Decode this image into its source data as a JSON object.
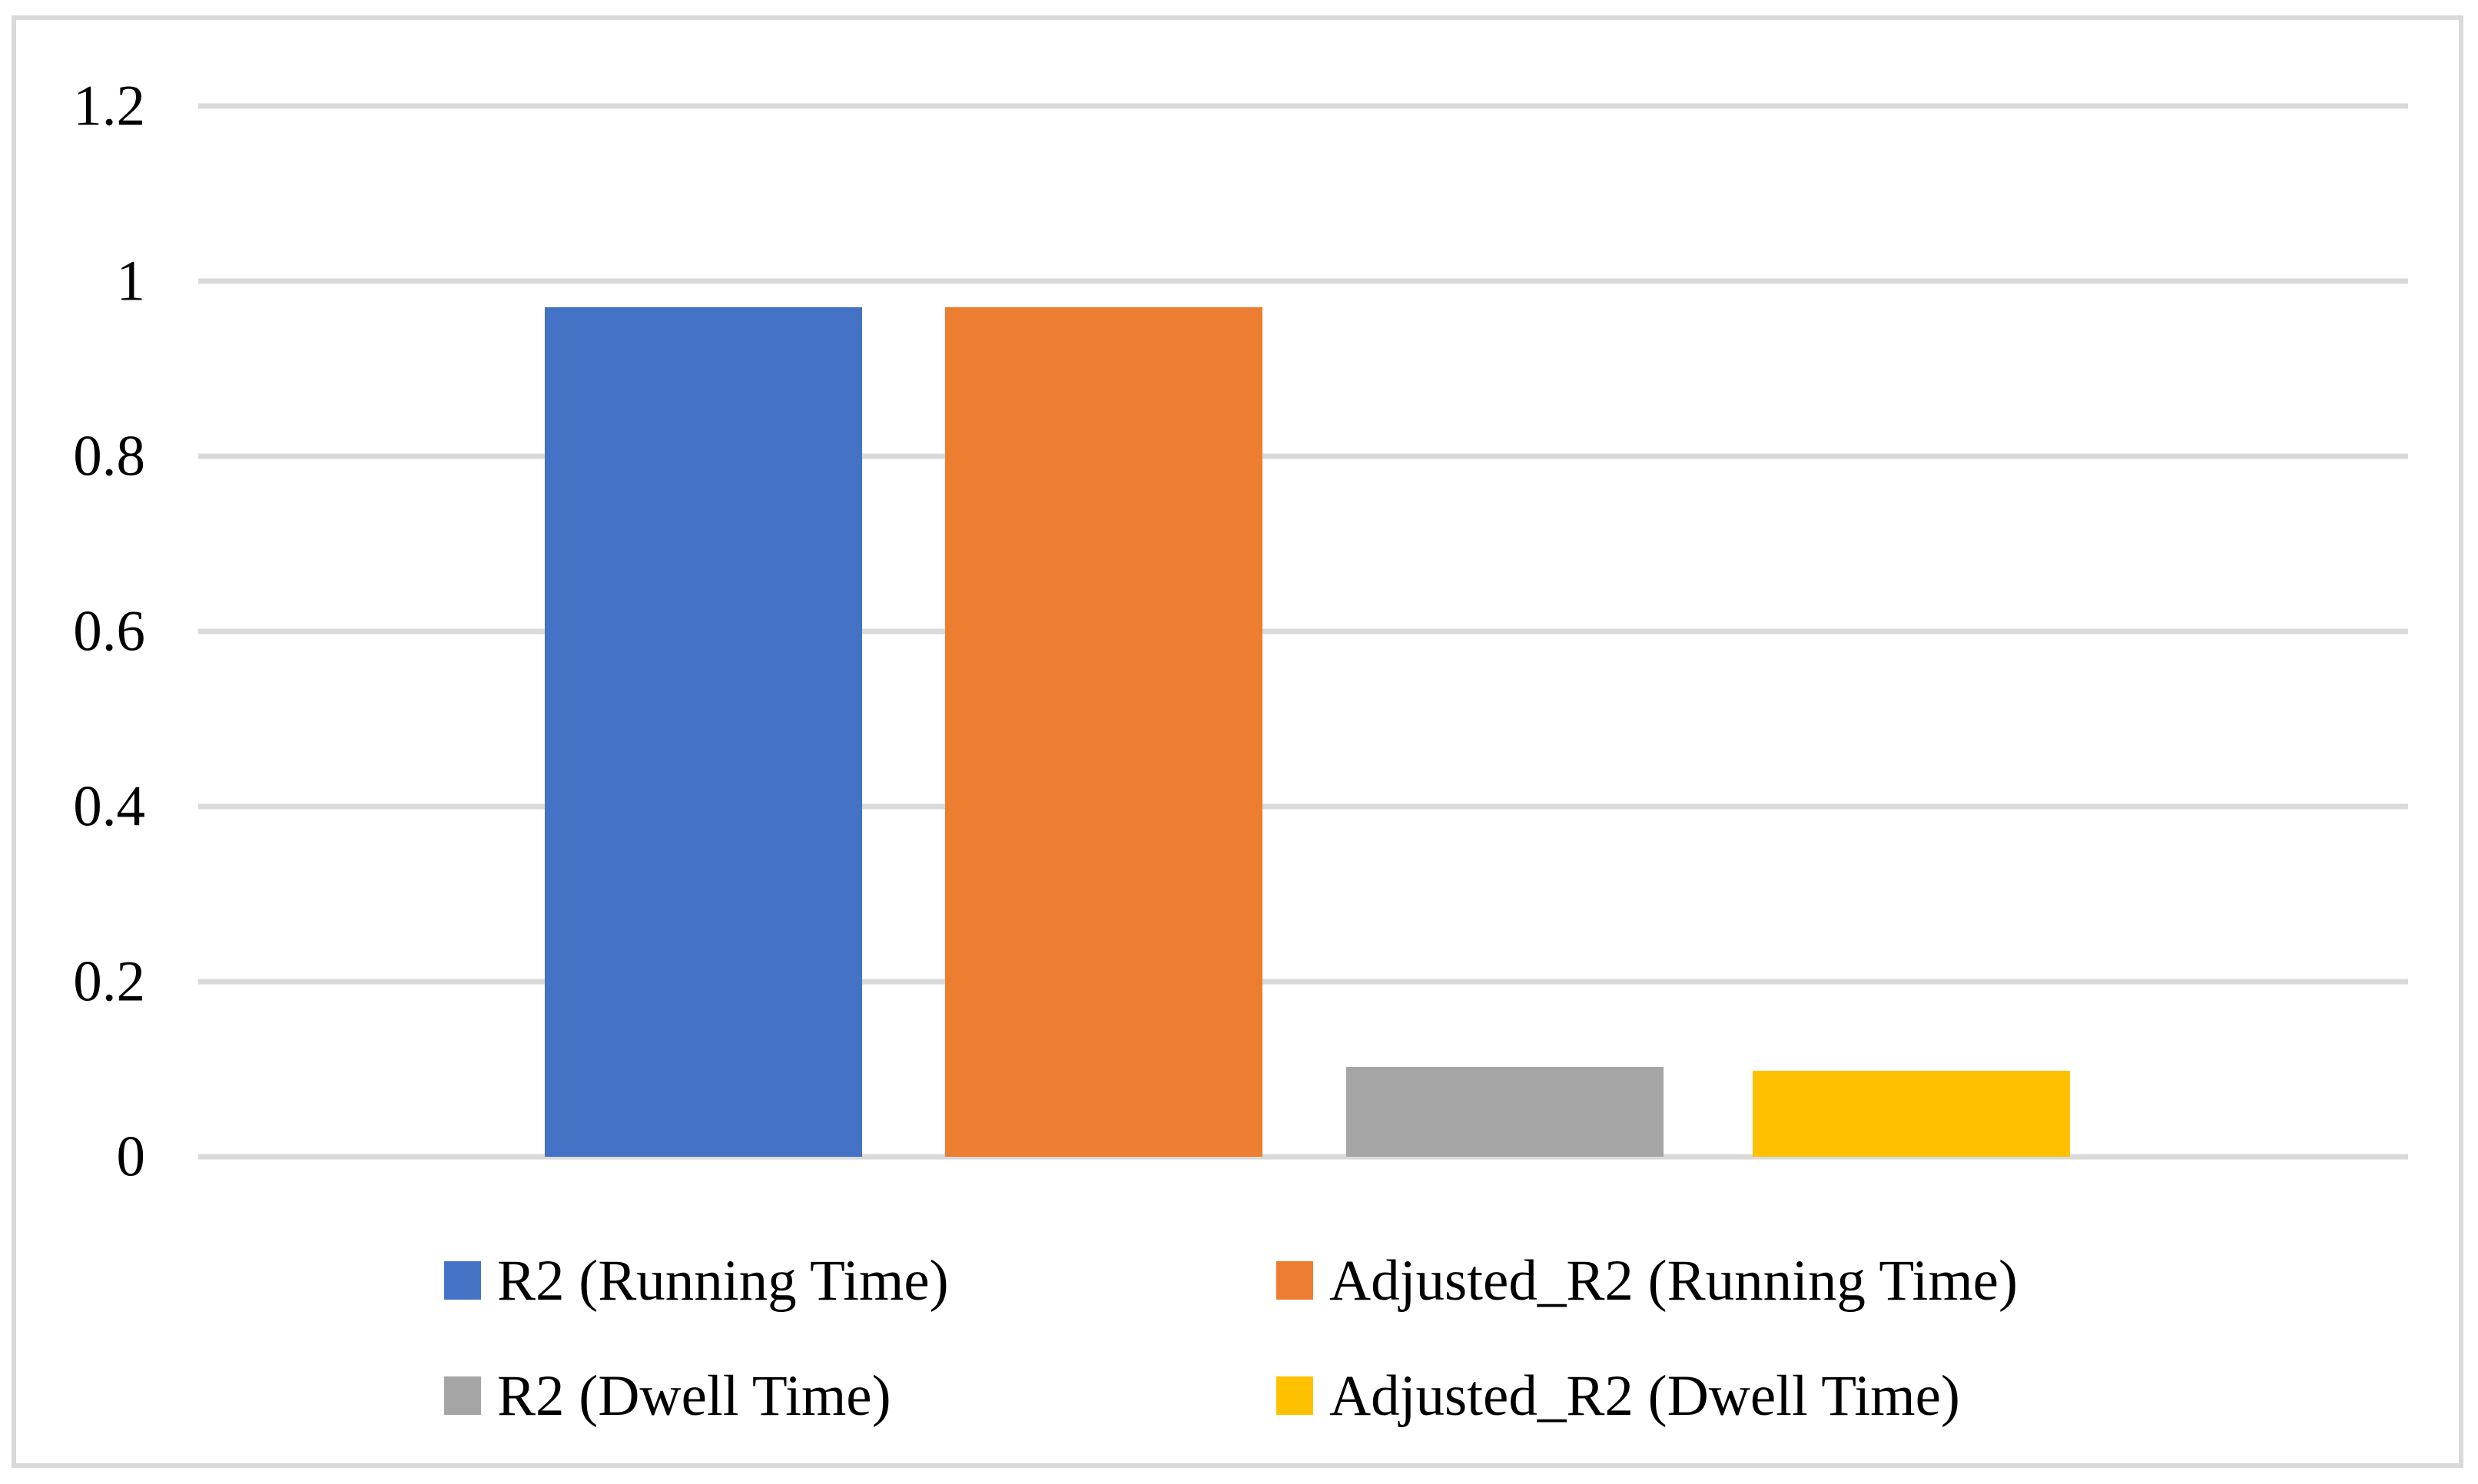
{
  "chart_data": {
    "type": "bar",
    "title": "",
    "categories": [
      ""
    ],
    "series": [
      {
        "name": "R2 (Running Time)",
        "values": [
          0.97
        ],
        "color": "#4472C4"
      },
      {
        "name": "Adjusted_R2 (Running Time)",
        "values": [
          0.97
        ],
        "color": "#ED7D31"
      },
      {
        "name": "R2 (Dwell Time)",
        "values": [
          0.103
        ],
        "color": "#A5A5A5"
      },
      {
        "name": "Adjusted_R2 (Dwell Time)",
        "values": [
          0.098
        ],
        "color": "#FFC000"
      }
    ],
    "xlabel": "",
    "ylabel": "",
    "ylim": [
      0,
      1.2
    ],
    "ytick_interval": 0.2,
    "ytick_labels": [
      "0",
      "0.2",
      "0.4",
      "0.6",
      "0.8",
      "1",
      "1.2"
    ],
    "grid": "horizontal",
    "gridline_color": "#D9D9D9",
    "frame_border_color": "#D9D9D9",
    "text_color": "#000000",
    "background_color": "#FFFFFF",
    "legend_position": "bottom",
    "legend_layout": "2x2"
  }
}
